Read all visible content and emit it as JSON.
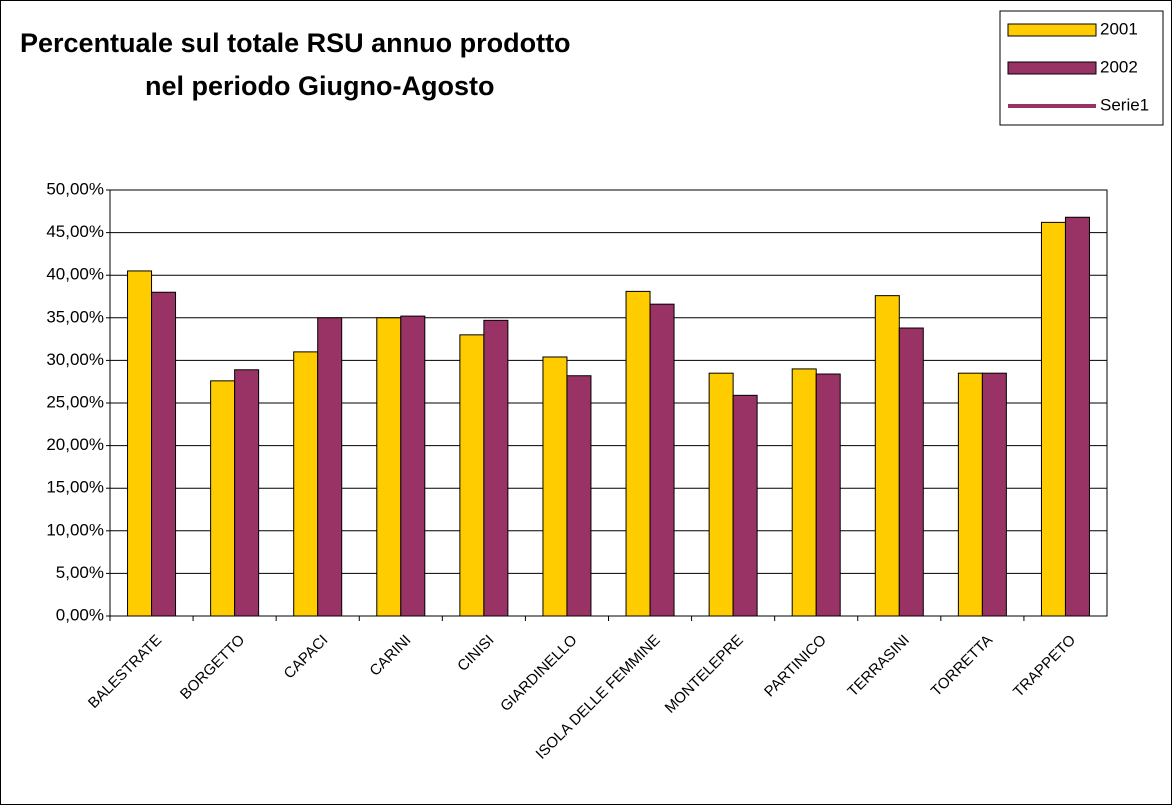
{
  "chart_data": {
    "type": "bar",
    "title": [
      "Percentuale sul totale RSU annuo prodotto",
      "nel periodo Giugno-Agosto"
    ],
    "categories": [
      "BALESTRATE",
      "BORGETTO",
      "CAPACI",
      "CARINI",
      "CINISI",
      "GIARDINELLO",
      "ISOLA DELLE FEMMINE",
      "MONTELEPRE",
      "PARTINICO",
      "TERRASINI",
      "TORRETTA",
      "TRAPPETO"
    ],
    "series": [
      {
        "name": "2001",
        "color": "#FFCC00",
        "values": [
          40.5,
          27.6,
          31.0,
          35.0,
          33.0,
          30.4,
          38.1,
          28.5,
          29.0,
          37.6,
          28.5,
          46.2
        ]
      },
      {
        "name": "2002",
        "color": "#993366",
        "values": [
          38.0,
          28.9,
          35.0,
          35.2,
          34.7,
          28.2,
          36.6,
          25.9,
          28.4,
          33.8,
          28.5,
          46.8
        ]
      },
      {
        "name": "Serie1",
        "color": "#993366",
        "type": "line",
        "values": [
          null,
          null,
          null,
          null,
          null,
          null,
          null,
          null,
          null,
          null,
          null,
          null
        ]
      }
    ],
    "ylim": [
      0,
      50
    ],
    "yticks": [
      {
        "value": 0,
        "label": "0,00%"
      },
      {
        "value": 5,
        "label": "5,00%"
      },
      {
        "value": 10,
        "label": "10,00%"
      },
      {
        "value": 15,
        "label": "15,00%"
      },
      {
        "value": 20,
        "label": "20,00%"
      },
      {
        "value": 25,
        "label": "25,00%"
      },
      {
        "value": 30,
        "label": "30,00%"
      },
      {
        "value": 35,
        "label": "35,00%"
      },
      {
        "value": 40,
        "label": "40,00%"
      },
      {
        "value": 45,
        "label": "45,00%"
      },
      {
        "value": 50,
        "label": "50,00%"
      }
    ],
    "grid": true,
    "legend": "top-right"
  }
}
